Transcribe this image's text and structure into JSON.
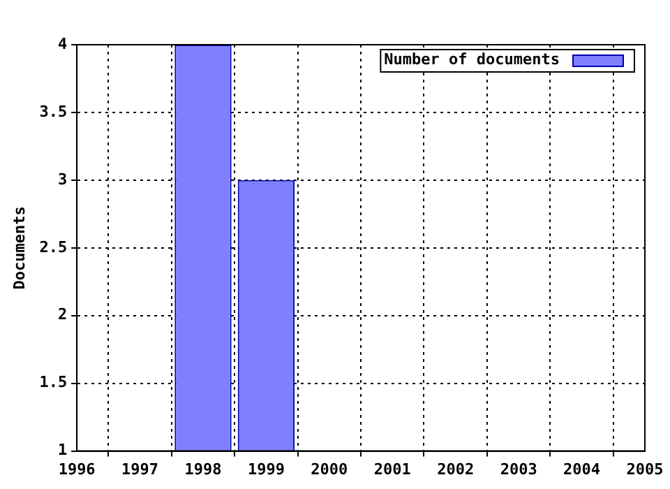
{
  "chart_data": {
    "type": "bar",
    "ylabel": "Documents",
    "x": [
      1998,
      1999
    ],
    "series": [
      {
        "name": "Number of documents",
        "color": "#8080ff",
        "values": [
          4,
          3
        ]
      }
    ],
    "xlim": [
      1996,
      2005
    ],
    "xticks": [
      1996,
      1997,
      1998,
      1999,
      2000,
      2001,
      2002,
      2003,
      2004,
      2005
    ],
    "ylim": [
      1,
      4
    ],
    "yticks": [
      1,
      1.5,
      2,
      2.5,
      3,
      3.5,
      4
    ],
    "grid": true,
    "legend": "top right"
  }
}
